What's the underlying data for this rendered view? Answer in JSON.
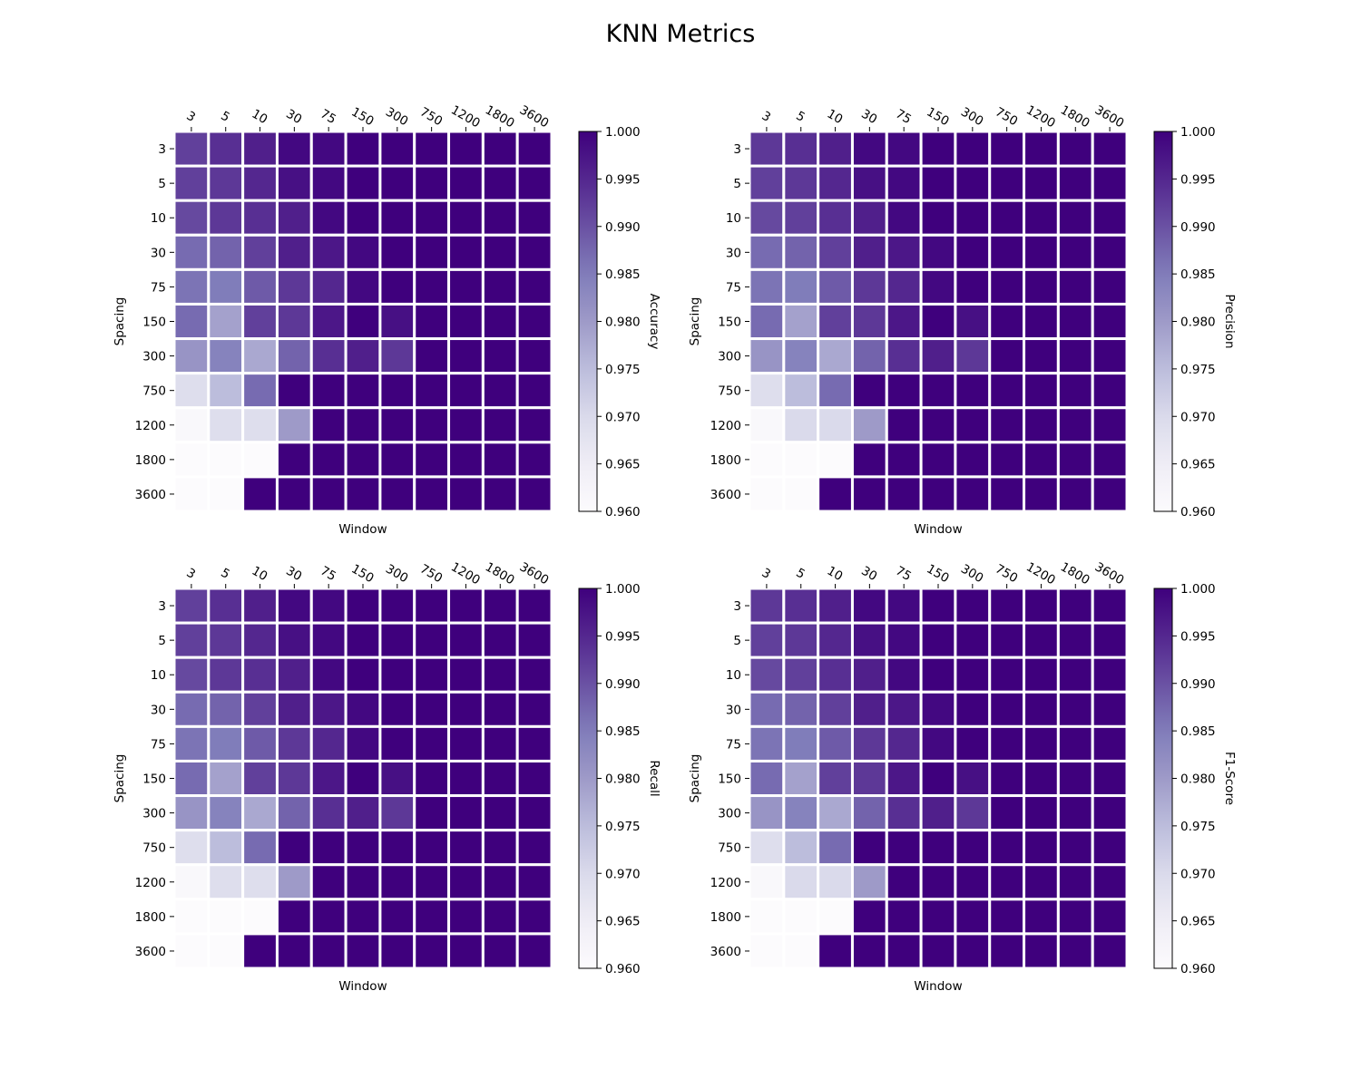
{
  "figure": {
    "title": "KNN Metrics"
  },
  "chart_data": [
    {
      "type": "heatmap",
      "title": "",
      "xlabel": "Window",
      "ylabel": "Spacing",
      "colorbar_label": "Accuracy",
      "x_categories": [
        "3",
        "5",
        "10",
        "30",
        "75",
        "150",
        "300",
        "750",
        "1200",
        "1800",
        "3600"
      ],
      "y_categories": [
        "3",
        "5",
        "10",
        "30",
        "75",
        "150",
        "300",
        "750",
        "1200",
        "1800",
        "3600"
      ],
      "vmin": 0.96,
      "vmax": 1.0,
      "colorbar_ticks": [
        "0.960",
        "0.965",
        "0.970",
        "0.975",
        "0.980",
        "0.985",
        "0.990",
        "0.995",
        "1.000"
      ],
      "colormap": "Purples",
      "values": [
        [
          0.992,
          0.994,
          0.996,
          0.999,
          0.999,
          1.0,
          1.0,
          1.0,
          1.0,
          1.0,
          1.0
        ],
        [
          0.992,
          0.993,
          0.995,
          0.998,
          0.999,
          1.0,
          1.0,
          1.0,
          1.0,
          1.0,
          1.0
        ],
        [
          0.991,
          0.993,
          0.994,
          0.996,
          0.999,
          1.0,
          1.0,
          1.0,
          1.0,
          1.0,
          1.0
        ],
        [
          0.987,
          0.988,
          0.992,
          0.996,
          0.997,
          0.999,
          1.0,
          1.0,
          1.0,
          1.0,
          1.0
        ],
        [
          0.986,
          0.985,
          0.989,
          0.993,
          0.995,
          0.999,
          1.0,
          1.0,
          1.0,
          1.0,
          1.0
        ],
        [
          0.987,
          0.979,
          0.992,
          0.993,
          0.997,
          1.0,
          0.998,
          1.0,
          1.0,
          1.0,
          1.0
        ],
        [
          0.981,
          0.984,
          0.978,
          0.988,
          0.994,
          0.996,
          0.993,
          1.0,
          1.0,
          1.0,
          1.0
        ],
        [
          0.969,
          0.975,
          0.987,
          1.0,
          1.0,
          1.0,
          1.0,
          1.0,
          1.0,
          1.0,
          1.0
        ],
        [
          0.961,
          0.969,
          0.969,
          0.98,
          1.0,
          1.0,
          1.0,
          1.0,
          1.0,
          1.0,
          1.0
        ],
        [
          0.96,
          0.96,
          0.96,
          1.0,
          1.0,
          1.0,
          1.0,
          1.0,
          1.0,
          1.0,
          1.0
        ],
        [
          0.96,
          0.96,
          1.0,
          1.0,
          1.0,
          1.0,
          1.0,
          1.0,
          1.0,
          1.0,
          1.0
        ]
      ]
    },
    {
      "type": "heatmap",
      "title": "",
      "xlabel": "Window",
      "ylabel": "Spacing",
      "colorbar_label": "Precision",
      "x_categories": [
        "3",
        "5",
        "10",
        "30",
        "75",
        "150",
        "300",
        "750",
        "1200",
        "1800",
        "3600"
      ],
      "y_categories": [
        "3",
        "5",
        "10",
        "30",
        "75",
        "150",
        "300",
        "750",
        "1200",
        "1800",
        "3600"
      ],
      "vmin": 0.96,
      "vmax": 1.0,
      "colorbar_ticks": [
        "0.960",
        "0.965",
        "0.970",
        "0.975",
        "0.980",
        "0.985",
        "0.990",
        "0.995",
        "1.000"
      ],
      "colormap": "Purples",
      "values": [
        [
          0.993,
          0.994,
          0.996,
          0.999,
          0.999,
          1.0,
          1.0,
          1.0,
          1.0,
          1.0,
          1.0
        ],
        [
          0.992,
          0.993,
          0.995,
          0.998,
          0.999,
          1.0,
          1.0,
          1.0,
          1.0,
          1.0,
          1.0
        ],
        [
          0.991,
          0.992,
          0.994,
          0.996,
          0.999,
          1.0,
          1.0,
          1.0,
          1.0,
          1.0,
          1.0
        ],
        [
          0.987,
          0.988,
          0.992,
          0.996,
          0.997,
          0.999,
          1.0,
          1.0,
          1.0,
          1.0,
          1.0
        ],
        [
          0.986,
          0.985,
          0.989,
          0.993,
          0.995,
          0.999,
          1.0,
          1.0,
          1.0,
          1.0,
          1.0
        ],
        [
          0.987,
          0.979,
          0.992,
          0.993,
          0.997,
          1.0,
          0.998,
          1.0,
          1.0,
          1.0,
          1.0
        ],
        [
          0.981,
          0.984,
          0.978,
          0.988,
          0.994,
          0.996,
          0.993,
          1.0,
          1.0,
          1.0,
          1.0
        ],
        [
          0.969,
          0.975,
          0.987,
          1.0,
          1.0,
          1.0,
          1.0,
          1.0,
          1.0,
          1.0,
          1.0
        ],
        [
          0.961,
          0.97,
          0.97,
          0.98,
          1.0,
          1.0,
          1.0,
          1.0,
          1.0,
          1.0,
          1.0
        ],
        [
          0.96,
          0.96,
          0.96,
          1.0,
          1.0,
          1.0,
          1.0,
          1.0,
          1.0,
          1.0,
          1.0
        ],
        [
          0.96,
          0.96,
          1.0,
          1.0,
          1.0,
          1.0,
          1.0,
          1.0,
          1.0,
          1.0,
          1.0
        ]
      ]
    },
    {
      "type": "heatmap",
      "title": "",
      "xlabel": "Window",
      "ylabel": "Spacing",
      "colorbar_label": "Recall",
      "x_categories": [
        "3",
        "5",
        "10",
        "30",
        "75",
        "150",
        "300",
        "750",
        "1200",
        "1800",
        "3600"
      ],
      "y_categories": [
        "3",
        "5",
        "10",
        "30",
        "75",
        "150",
        "300",
        "750",
        "1200",
        "1800",
        "3600"
      ],
      "vmin": 0.96,
      "vmax": 1.0,
      "colorbar_ticks": [
        "0.960",
        "0.965",
        "0.970",
        "0.975",
        "0.980",
        "0.985",
        "0.990",
        "0.995",
        "1.000"
      ],
      "colormap": "Purples",
      "values": [
        [
          0.992,
          0.994,
          0.996,
          0.999,
          0.999,
          1.0,
          1.0,
          1.0,
          1.0,
          1.0,
          1.0
        ],
        [
          0.992,
          0.993,
          0.995,
          0.998,
          0.999,
          1.0,
          1.0,
          1.0,
          1.0,
          1.0,
          1.0
        ],
        [
          0.991,
          0.993,
          0.994,
          0.996,
          0.999,
          1.0,
          1.0,
          1.0,
          1.0,
          1.0,
          1.0
        ],
        [
          0.987,
          0.988,
          0.992,
          0.996,
          0.997,
          0.999,
          1.0,
          1.0,
          1.0,
          1.0,
          1.0
        ],
        [
          0.986,
          0.985,
          0.989,
          0.993,
          0.995,
          0.999,
          1.0,
          1.0,
          1.0,
          1.0,
          1.0
        ],
        [
          0.987,
          0.979,
          0.992,
          0.993,
          0.997,
          1.0,
          0.998,
          1.0,
          1.0,
          1.0,
          1.0
        ],
        [
          0.981,
          0.984,
          0.978,
          0.988,
          0.994,
          0.996,
          0.993,
          1.0,
          1.0,
          1.0,
          1.0
        ],
        [
          0.969,
          0.975,
          0.987,
          1.0,
          1.0,
          1.0,
          1.0,
          1.0,
          1.0,
          1.0,
          1.0
        ],
        [
          0.961,
          0.969,
          0.969,
          0.98,
          1.0,
          1.0,
          1.0,
          1.0,
          1.0,
          1.0,
          1.0
        ],
        [
          0.96,
          0.96,
          0.96,
          1.0,
          1.0,
          1.0,
          1.0,
          1.0,
          1.0,
          1.0,
          1.0
        ],
        [
          0.96,
          0.96,
          1.0,
          1.0,
          1.0,
          1.0,
          1.0,
          1.0,
          1.0,
          1.0,
          1.0
        ]
      ]
    },
    {
      "type": "heatmap",
      "title": "",
      "xlabel": "Window",
      "ylabel": "Spacing",
      "colorbar_label": "F1-Score",
      "x_categories": [
        "3",
        "5",
        "10",
        "30",
        "75",
        "150",
        "300",
        "750",
        "1200",
        "1800",
        "3600"
      ],
      "y_categories": [
        "3",
        "5",
        "10",
        "30",
        "75",
        "150",
        "300",
        "750",
        "1200",
        "1800",
        "3600"
      ],
      "vmin": 0.96,
      "vmax": 1.0,
      "colorbar_ticks": [
        "0.960",
        "0.965",
        "0.970",
        "0.975",
        "0.980",
        "0.985",
        "0.990",
        "0.995",
        "1.000"
      ],
      "colormap": "Purples",
      "values": [
        [
          0.993,
          0.994,
          0.996,
          0.999,
          0.999,
          1.0,
          1.0,
          1.0,
          1.0,
          1.0,
          1.0
        ],
        [
          0.992,
          0.993,
          0.995,
          0.998,
          0.999,
          1.0,
          1.0,
          1.0,
          1.0,
          1.0,
          1.0
        ],
        [
          0.991,
          0.992,
          0.994,
          0.996,
          0.999,
          1.0,
          1.0,
          1.0,
          1.0,
          1.0,
          1.0
        ],
        [
          0.987,
          0.988,
          0.992,
          0.996,
          0.997,
          0.999,
          1.0,
          1.0,
          1.0,
          1.0,
          1.0
        ],
        [
          0.986,
          0.985,
          0.989,
          0.993,
          0.995,
          0.999,
          1.0,
          1.0,
          1.0,
          1.0,
          1.0
        ],
        [
          0.987,
          0.979,
          0.992,
          0.993,
          0.997,
          1.0,
          0.998,
          1.0,
          1.0,
          1.0,
          1.0
        ],
        [
          0.981,
          0.984,
          0.978,
          0.988,
          0.994,
          0.996,
          0.993,
          1.0,
          1.0,
          1.0,
          1.0
        ],
        [
          0.969,
          0.975,
          0.987,
          1.0,
          1.0,
          1.0,
          1.0,
          1.0,
          1.0,
          1.0,
          1.0
        ],
        [
          0.961,
          0.97,
          0.97,
          0.98,
          1.0,
          1.0,
          1.0,
          1.0,
          1.0,
          1.0,
          1.0
        ],
        [
          0.96,
          0.96,
          0.96,
          1.0,
          1.0,
          1.0,
          1.0,
          1.0,
          1.0,
          1.0,
          1.0
        ],
        [
          0.96,
          0.96,
          1.0,
          1.0,
          1.0,
          1.0,
          1.0,
          1.0,
          1.0,
          1.0,
          1.0
        ]
      ]
    }
  ]
}
